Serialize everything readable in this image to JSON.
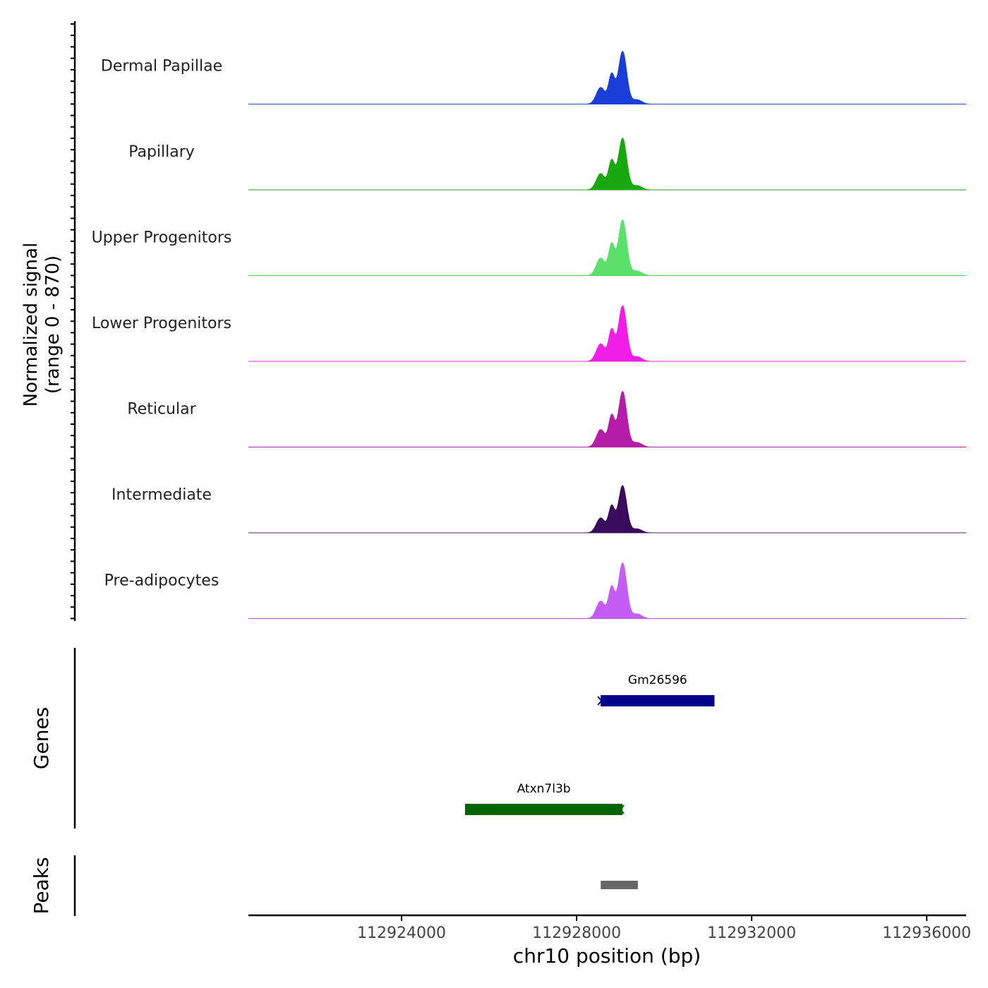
{
  "chart_data": {
    "type": "area",
    "title": "",
    "ylabel_line1": "Normalized signal",
    "ylabel_line2": "(range 0 - 870)",
    "y_range": [
      0,
      870
    ],
    "xlabel": "chr10 position (bp)",
    "xlim": [
      112920500,
      112936900
    ],
    "x_ticks": [
      112924000,
      112928000,
      112932000,
      112936000
    ],
    "x_tick_labels": [
      "112924000",
      "112928000",
      "112932000",
      "112936000"
    ],
    "peak_profile": [
      {
        "pos": 112928550,
        "height": 0.3,
        "width": 100
      },
      {
        "pos": 112928800,
        "height": 0.52,
        "width": 70
      },
      {
        "pos": 112929050,
        "height": 0.95,
        "width": 95
      },
      {
        "pos": 112929380,
        "height": 0.08,
        "width": 110
      }
    ],
    "series": [
      {
        "name": "Dermal Papillae",
        "color": "#1a3fd9",
        "scale": 0.95
      },
      {
        "name": "Papillary",
        "color": "#19a80f",
        "scale": 0.93
      },
      {
        "name": "Upper Progenitors",
        "color": "#5be06a",
        "scale": 1.0
      },
      {
        "name": "Lower Progenitors",
        "color": "#f21ee8",
        "scale": 1.0
      },
      {
        "name": "Reticular",
        "color": "#b51ca8",
        "scale": 1.0
      },
      {
        "name": "Intermediate",
        "color": "#3a0a5c",
        "scale": 0.85
      },
      {
        "name": "Pre-adipocytes",
        "color": "#c55cf5",
        "scale": 1.0
      }
    ],
    "genes_label": "Genes",
    "genes": [
      {
        "name": "Gm26596",
        "start": 112928550,
        "end": 112931150,
        "strand": "+",
        "color": "#00008b"
      },
      {
        "name": "Atxn7l3b",
        "start": 112925450,
        "end": 112929050,
        "strand": "-",
        "color": "#006400"
      }
    ],
    "peaks_label": "Peaks",
    "peaks": [
      {
        "start": 112928550,
        "end": 112929400,
        "color": "#666666"
      }
    ]
  }
}
